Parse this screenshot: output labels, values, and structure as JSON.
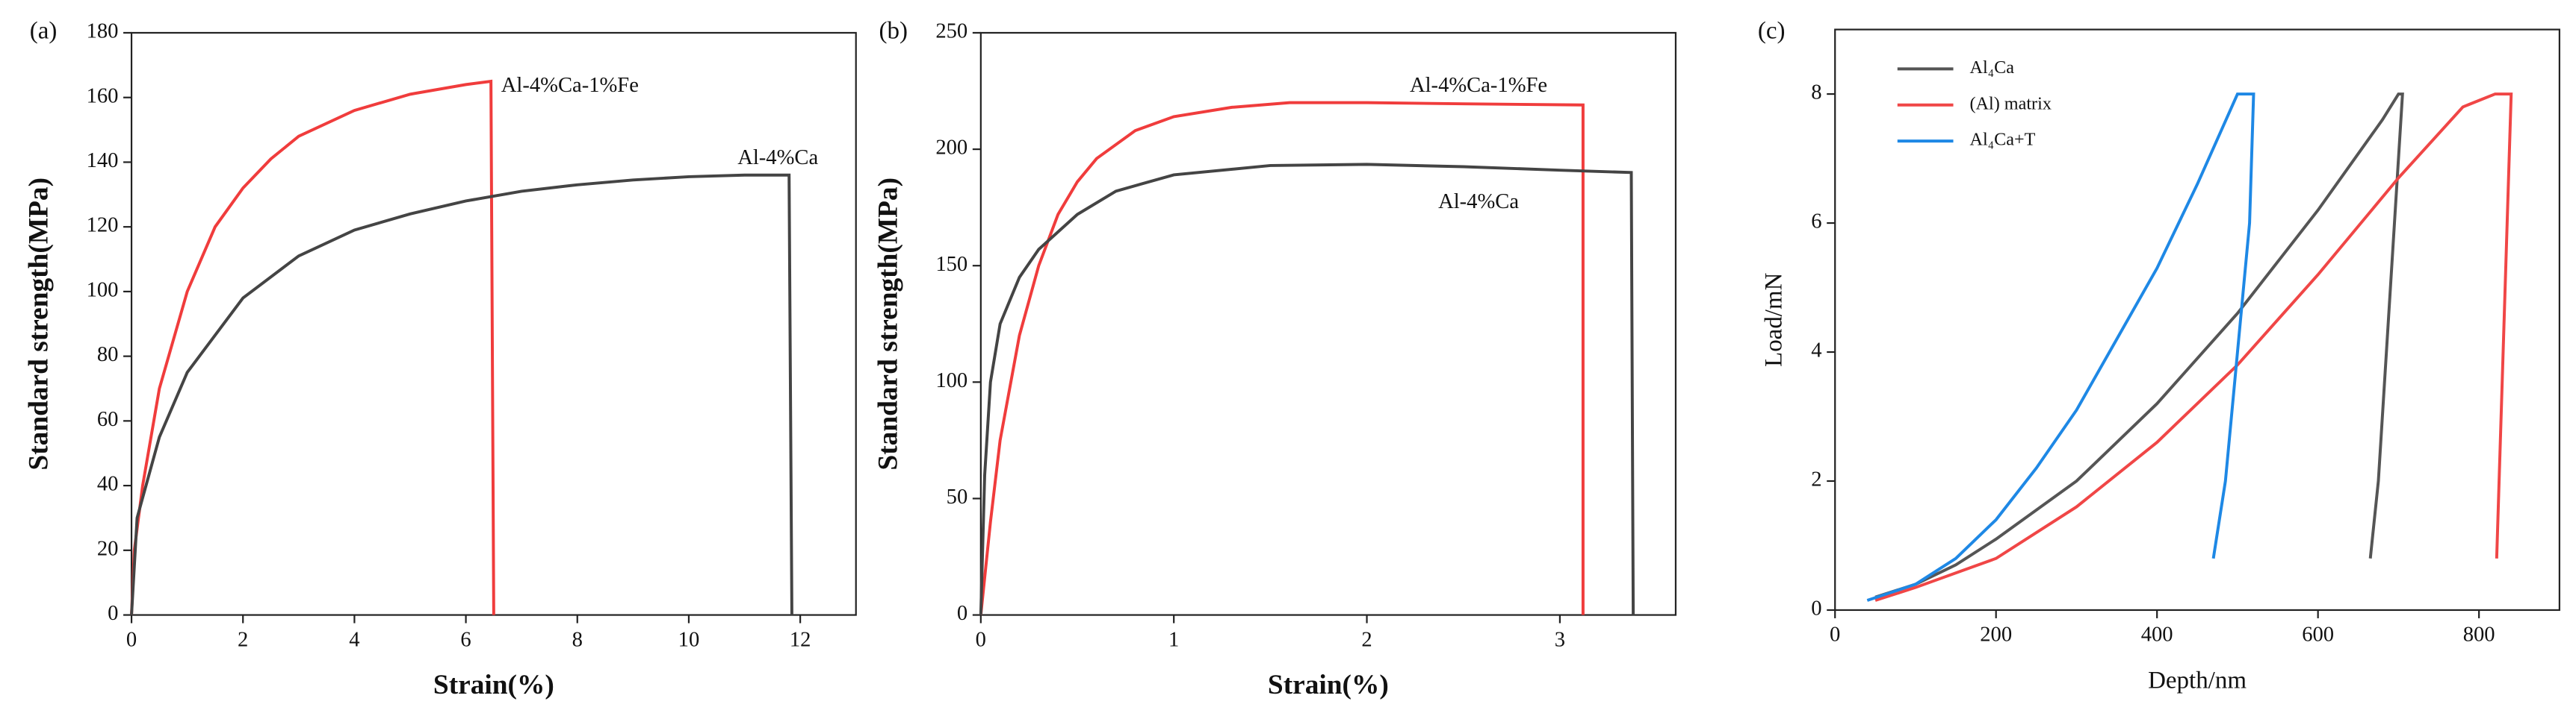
{
  "chart_data": [
    {
      "type": "line",
      "label": "(a)",
      "x_label": "Strain(%)",
      "y_label": "Standard strength(MPa)",
      "xlim": [
        0,
        13
      ],
      "xticks": [
        0,
        2,
        4,
        6,
        8,
        10,
        12
      ],
      "ylim": [
        0,
        180
      ],
      "yticks": [
        0,
        20,
        40,
        60,
        80,
        100,
        120,
        140,
        160,
        180
      ],
      "series": [
        {
          "name": "Al-4%Ca-1%Fe",
          "color": "#f03c3c",
          "x": [
            0,
            0.05,
            0.2,
            0.5,
            1,
            1.5,
            2,
            2.5,
            3,
            4,
            5,
            6,
            6.45,
            6.5
          ],
          "values": [
            0,
            20,
            40,
            70,
            100,
            120,
            132,
            141,
            148,
            156,
            161,
            164,
            165,
            0
          ]
        },
        {
          "name": "Al-4%Ca",
          "color": "#444444",
          "x": [
            0,
            0.1,
            0.5,
            1,
            2,
            3,
            4,
            5,
            6,
            7,
            8,
            9,
            10,
            11,
            11.8,
            11.85
          ],
          "values": [
            0,
            30,
            55,
            75,
            98,
            111,
            119,
            124,
            128,
            131,
            133,
            134.5,
            135.5,
            136,
            136,
            0
          ]
        }
      ]
    },
    {
      "type": "line",
      "label": "(b)",
      "x_label": "Strain(%)",
      "y_label": "Standard strength(MPa)",
      "xlim": [
        0,
        3.6
      ],
      "xticks": [
        0,
        1,
        2,
        3
      ],
      "ylim": [
        0,
        250
      ],
      "yticks": [
        0,
        50,
        100,
        150,
        200,
        250
      ],
      "series": [
        {
          "name": "Al-4%Ca-1%Fe",
          "color": "#f03c3c",
          "x": [
            0,
            0.05,
            0.1,
            0.2,
            0.3,
            0.4,
            0.5,
            0.6,
            0.8,
            1,
            1.3,
            1.6,
            2,
            2.5,
            3.12,
            3.12
          ],
          "values": [
            0,
            40,
            75,
            120,
            150,
            172,
            186,
            196,
            208,
            214,
            218,
            220,
            220,
            219.5,
            219,
            0
          ]
        },
        {
          "name": "Al-4%Ca",
          "color": "#444444",
          "x": [
            0,
            0.02,
            0.05,
            0.1,
            0.2,
            0.3,
            0.5,
            0.7,
            1,
            1.5,
            2,
            2.5,
            3,
            3.37,
            3.38
          ],
          "values": [
            0,
            60,
            100,
            125,
            145,
            157,
            172,
            182,
            189,
            193,
            193.5,
            192.5,
            191,
            190,
            0
          ]
        }
      ]
    },
    {
      "type": "line",
      "label": "(c)",
      "x_label": "Depth/nm",
      "y_label": "Load/mN",
      "legend": "upper left",
      "xlim": [
        0,
        900
      ],
      "xticks": [
        0,
        200,
        400,
        600,
        800
      ],
      "ylim": [
        0,
        9
      ],
      "yticks": [
        0,
        2,
        4,
        6,
        8
      ],
      "series": [
        {
          "name": "Al₄Ca",
          "color": "#555555",
          "x": [
            50,
            100,
            150,
            200,
            300,
            400,
            500,
            600,
            680,
            700,
            705,
            695,
            685,
            675,
            665
          ],
          "values": [
            0.2,
            0.4,
            0.7,
            1.1,
            2.0,
            3.2,
            4.6,
            6.2,
            7.6,
            8,
            8,
            6,
            4,
            2,
            0.8
          ]
        },
        {
          "name": "(Al) matrix",
          "color": "#f04646",
          "x": [
            50,
            100,
            200,
            300,
            400,
            500,
            600,
            700,
            780,
            820,
            840,
            835,
            830,
            825,
            822
          ],
          "values": [
            0.15,
            0.35,
            0.8,
            1.6,
            2.6,
            3.8,
            5.2,
            6.7,
            7.8,
            8,
            8,
            6,
            4,
            2,
            0.8
          ]
        },
        {
          "name": "Al₄Ca+T",
          "color": "#1e88e5",
          "x": [
            40,
            100,
            150,
            200,
            250,
            300,
            350,
            400,
            450,
            500,
            520,
            515,
            500,
            485,
            470
          ],
          "values": [
            0.15,
            0.4,
            0.8,
            1.4,
            2.2,
            3.1,
            4.2,
            5.3,
            6.6,
            8.0,
            8.0,
            6,
            4,
            2,
            0.8
          ]
        }
      ]
    }
  ]
}
